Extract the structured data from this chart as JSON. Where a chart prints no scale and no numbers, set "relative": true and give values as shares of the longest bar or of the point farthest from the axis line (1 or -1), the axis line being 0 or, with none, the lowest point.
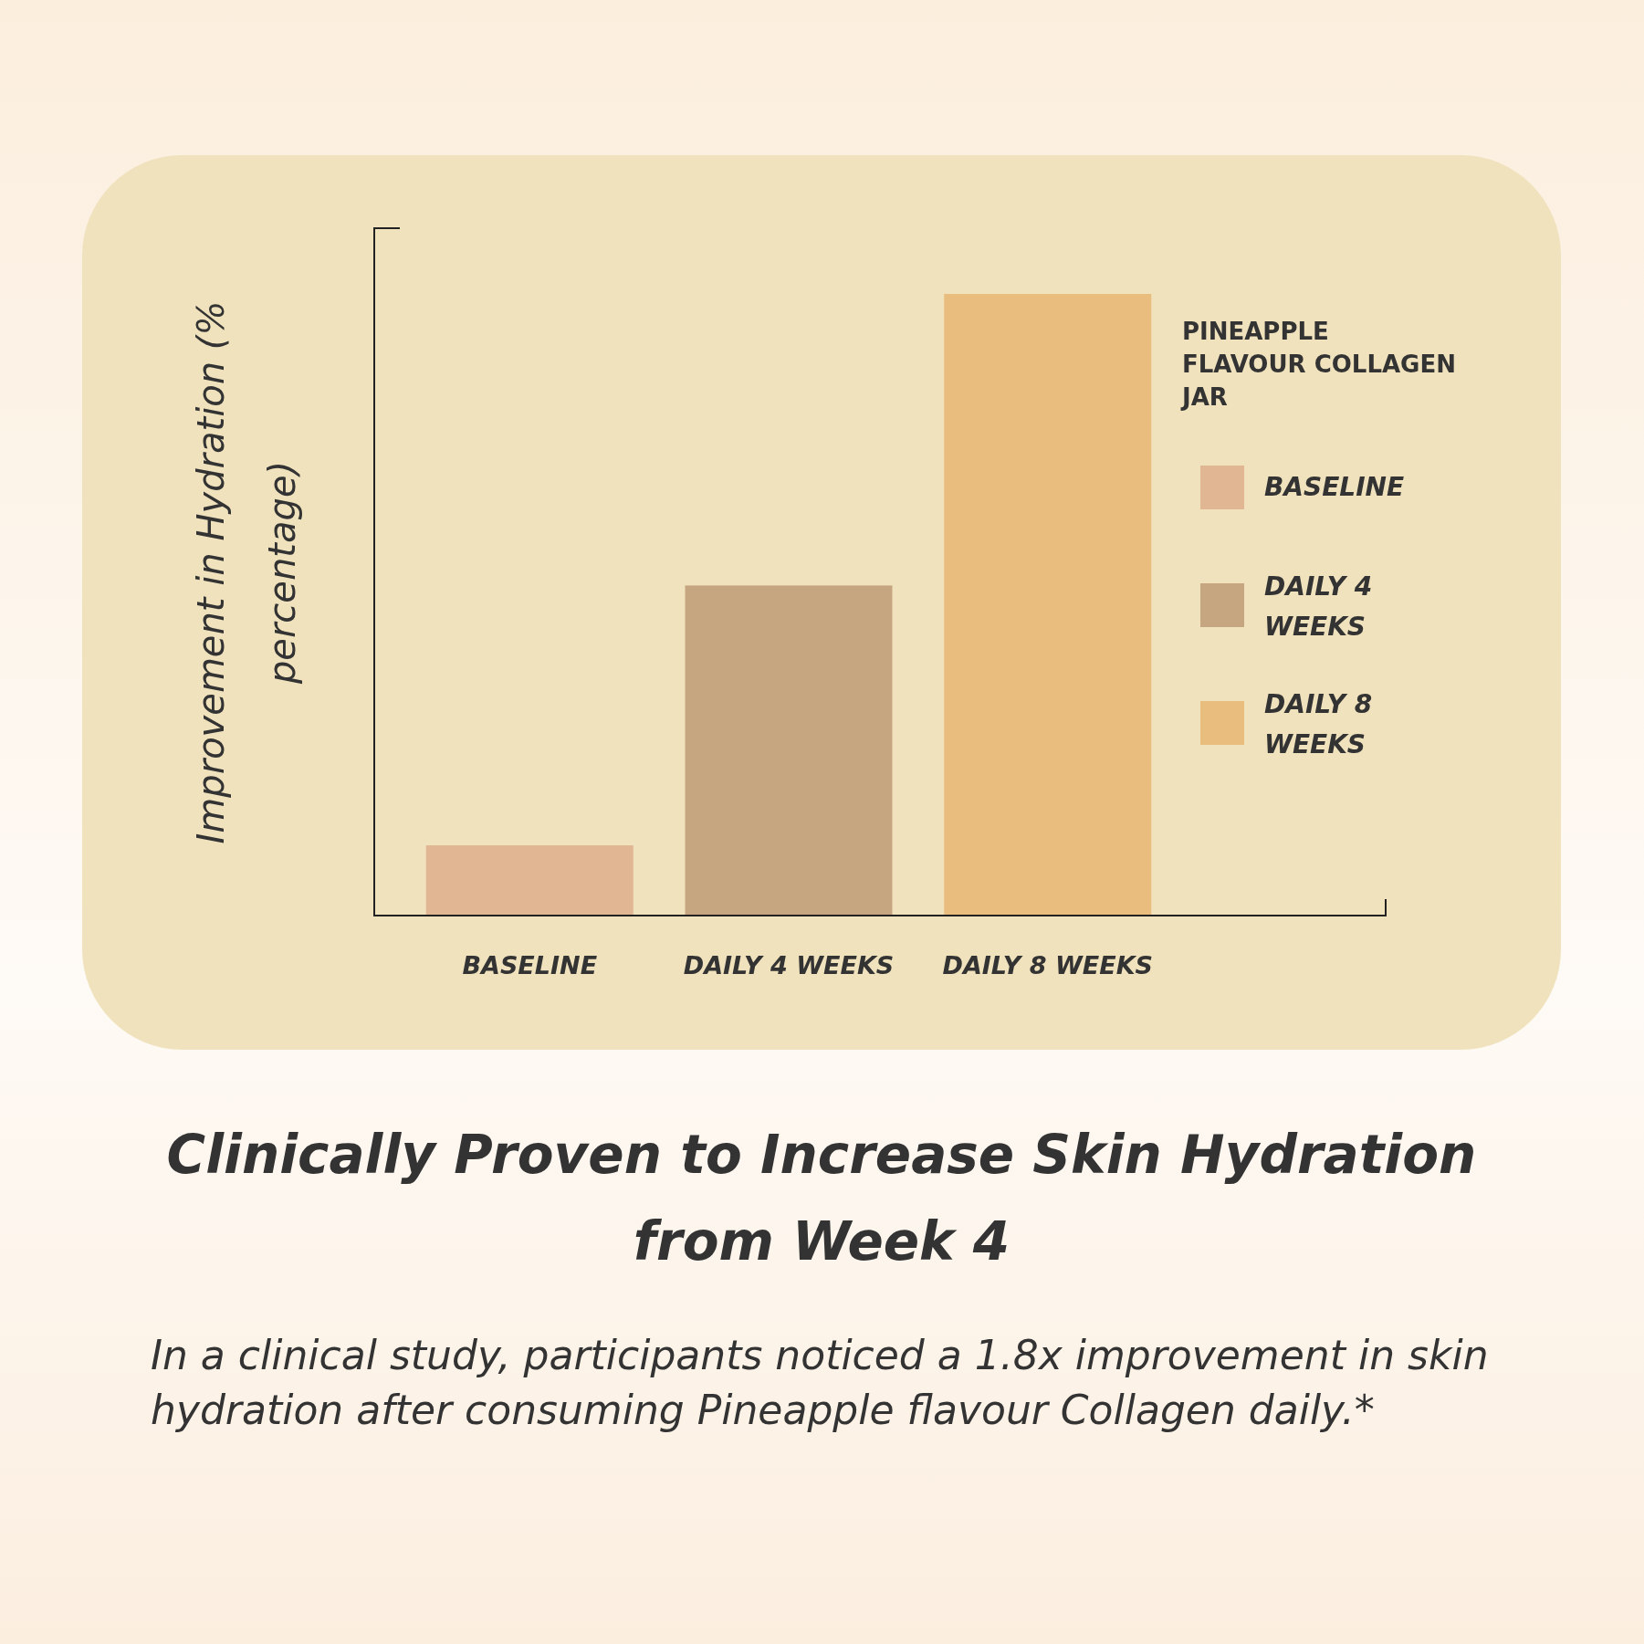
{
  "chart_data": {
    "type": "bar",
    "relative": true,
    "stacked": true,
    "title": "Clinically Proven to  Increase Skin Hydration from Week 4",
    "ylabel": "Improvement in Hydration (% percentage)",
    "legend_title": "PINEAPPLE FLAVOUR COLLAGEN JAR",
    "categories": [
      "BASELINE",
      "DAILY 4 WEEKS",
      "DAILY 8 WEEKS"
    ],
    "series": [
      {
        "name": "BASELINE",
        "color": "#e0b693",
        "values": [
          0.113,
          null,
          null
        ]
      },
      {
        "name": "DAILY 4 WEEKS",
        "color": "#c5a681",
        "values": [
          null,
          0.531,
          null
        ]
      },
      {
        "name": "DAILY 8 WEEKS",
        "color": "#e8bd7e",
        "values": [
          null,
          null,
          1
        ]
      }
    ],
    "legend": "right",
    "annotations": [
      "In a clinical study, participants noticed a 1.8x improvement in skin hydration after consuming Pineapple flavour Collagen daily.*"
    ]
  }
}
